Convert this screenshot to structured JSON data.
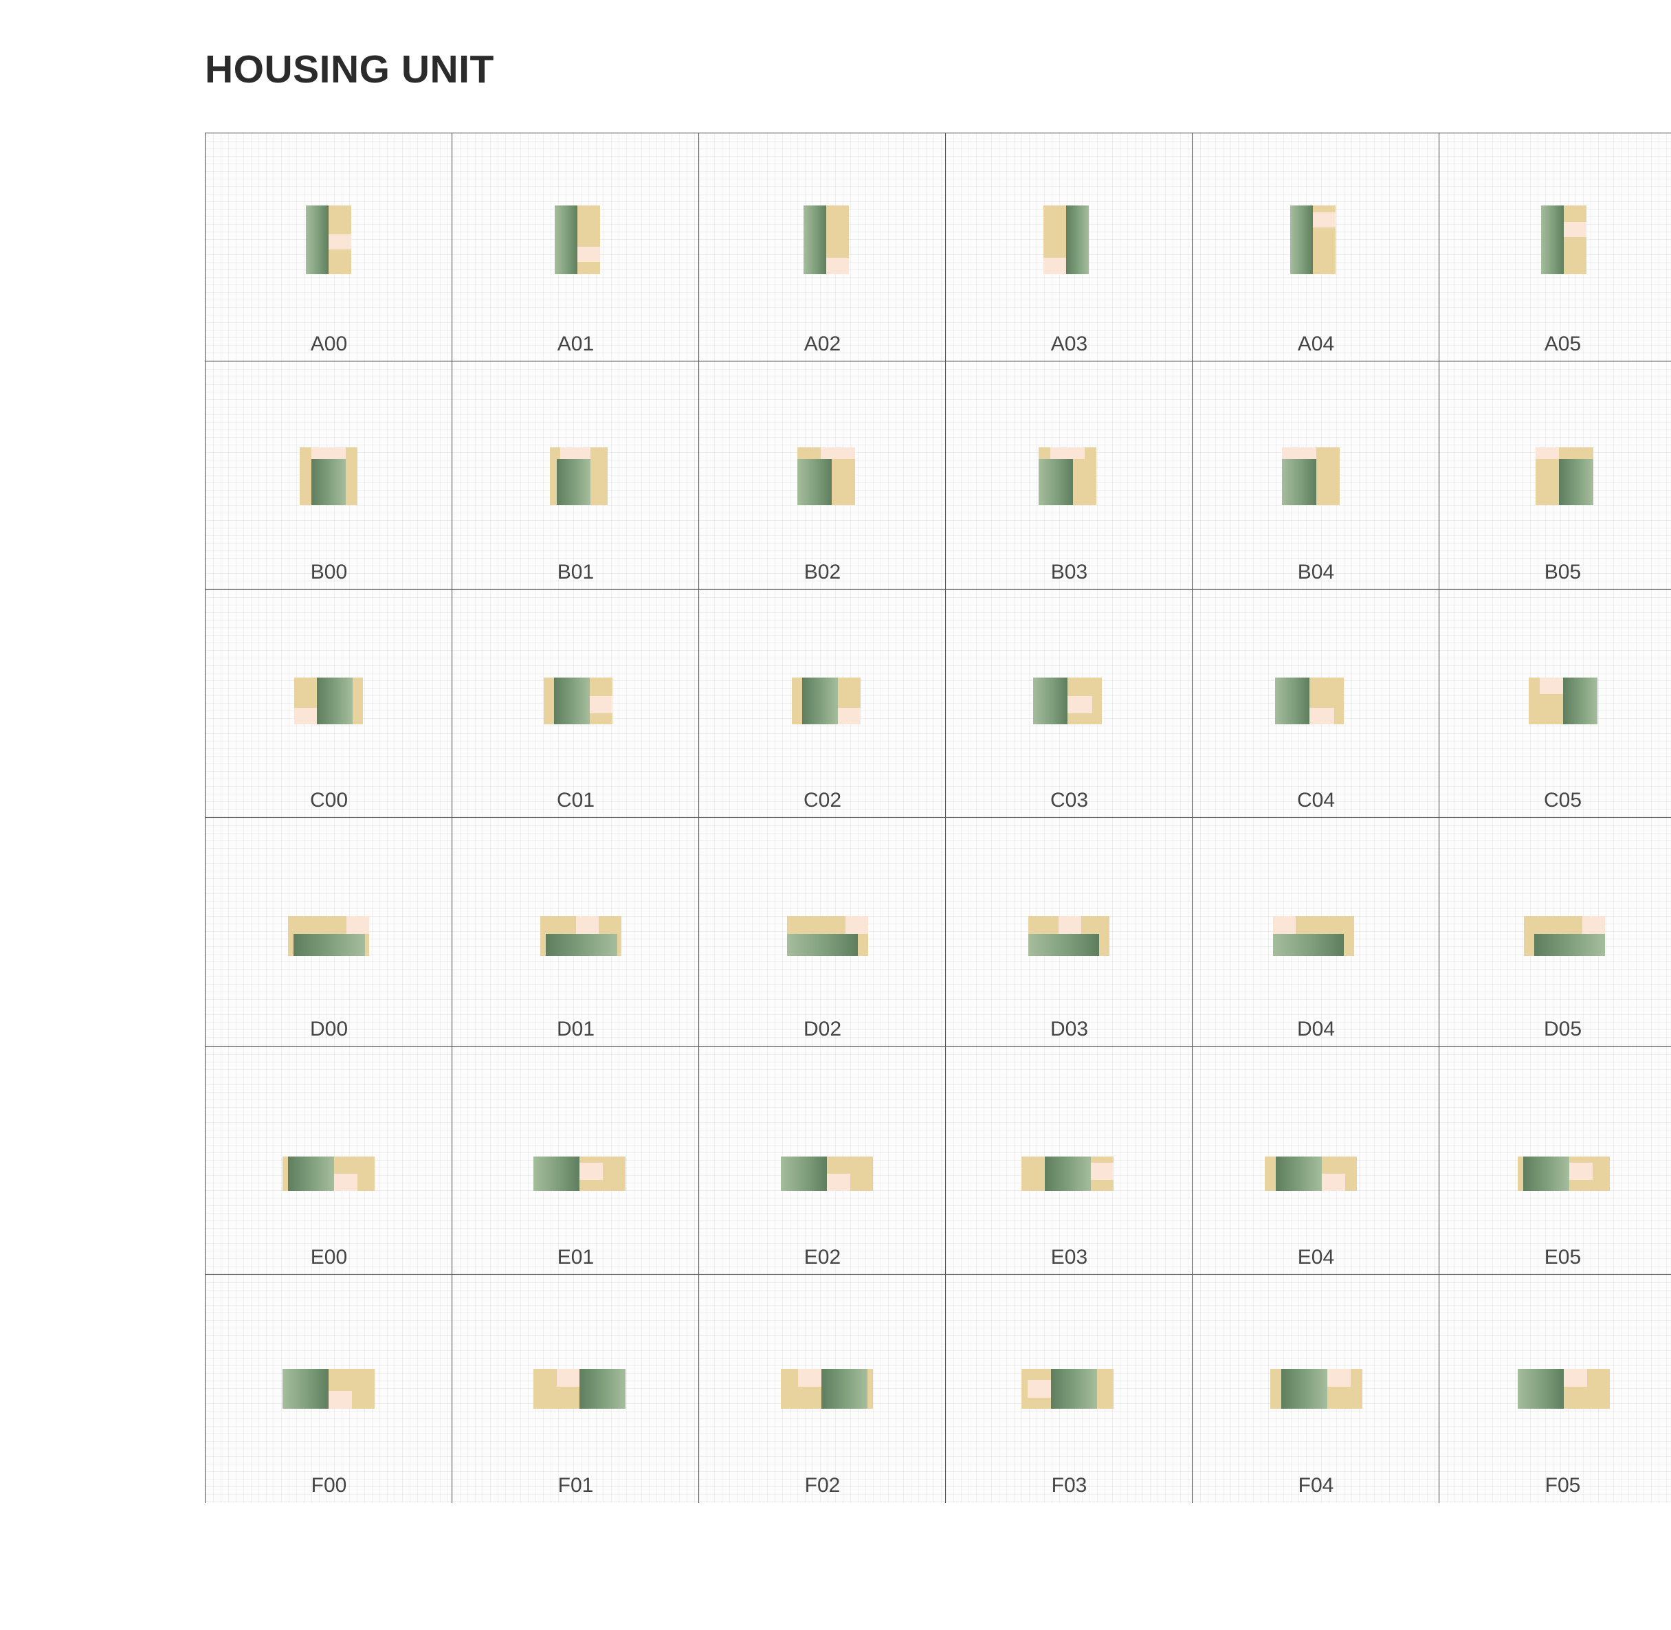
{
  "title": "HOUSING UNIT",
  "colors": {
    "living": "#7f9e7c",
    "living_dark": "#5e7e5d",
    "living_light": "#a5bd9c",
    "service": "#e8d29e",
    "wet": "#fbe5d6",
    "grid_line": "#555555"
  },
  "rows": [
    {
      "id": "A",
      "cells": [
        {
          "label": "A00"
        },
        {
          "label": "A01"
        },
        {
          "label": "A02"
        },
        {
          "label": "A03"
        },
        {
          "label": "A04"
        },
        {
          "label": "A05"
        }
      ]
    },
    {
      "id": "B",
      "cells": [
        {
          "label": "B00"
        },
        {
          "label": "B01"
        },
        {
          "label": "B02"
        },
        {
          "label": "B03"
        },
        {
          "label": "B04"
        },
        {
          "label": "B05"
        }
      ]
    },
    {
      "id": "C",
      "cells": [
        {
          "label": "C00"
        },
        {
          "label": "C01"
        },
        {
          "label": "C02"
        },
        {
          "label": "C03"
        },
        {
          "label": "C04"
        },
        {
          "label": "C05"
        }
      ]
    },
    {
      "id": "D",
      "cells": [
        {
          "label": "D00"
        },
        {
          "label": "D01"
        },
        {
          "label": "D02"
        },
        {
          "label": "D03"
        },
        {
          "label": "D04"
        },
        {
          "label": "D05"
        }
      ]
    },
    {
      "id": "E",
      "cells": [
        {
          "label": "E00"
        },
        {
          "label": "E01"
        },
        {
          "label": "E02"
        },
        {
          "label": "E03"
        },
        {
          "label": "E04"
        },
        {
          "label": "E05"
        }
      ]
    },
    {
      "id": "F",
      "cells": [
        {
          "label": "F00"
        },
        {
          "label": "F01"
        },
        {
          "label": "F02"
        },
        {
          "label": "F03"
        },
        {
          "label": "F04"
        },
        {
          "label": "F05"
        }
      ]
    }
  ]
}
